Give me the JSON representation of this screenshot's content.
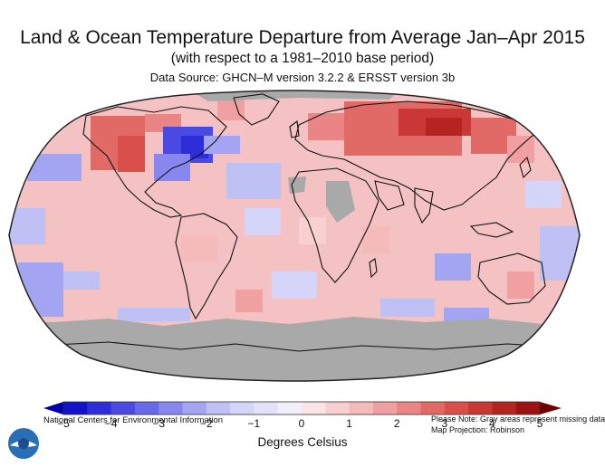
{
  "title": "Land & Ocean Temperature Departure from Average Jan–Apr 2015",
  "subtitle": "(with respect to a 1981–2010 base period)",
  "source": "Data Source: GHCN–M version 3.2.2 & ERSST version 3b",
  "colors": {
    "cold_5": "#1a1ad8",
    "cold_3": "#5a5ae6",
    "cold_1": "#b6b9f4",
    "neutral": "#f8dcdc",
    "warm_1": "#f5b0b0",
    "warm_3": "#e2564e",
    "warm_5": "#8e0d0d",
    "missing": "#aaaaaa",
    "ocean_warm": "#f6c0bf"
  },
  "colorbar": {
    "ticks": [
      "−5",
      "−4",
      "−3",
      "−2",
      "−1",
      "0",
      "1",
      "2",
      "3",
      "4",
      "5"
    ],
    "values": [
      -5,
      -4,
      -3,
      -2,
      -1,
      0,
      1,
      2,
      3,
      4,
      5
    ],
    "units": "Degrees Celsius"
  },
  "footer": {
    "agency": "National Centers for Environmental Information",
    "note_line1": "Please Note: Gray areas represent missing data",
    "note_line2": "Map Projection: Robinson"
  },
  "logo": {
    "icon": "noaa-logo-icon"
  }
}
